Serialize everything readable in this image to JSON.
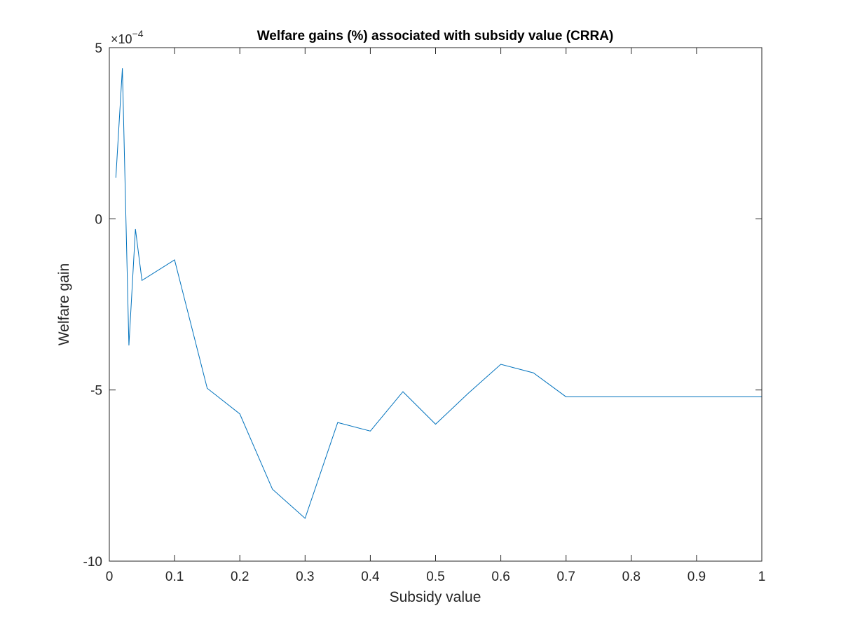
{
  "chart_data": {
    "type": "line",
    "title": "Welfare gains (%) associated with subsidy value (CRRA)",
    "xlabel": "Subsidy value",
    "ylabel": "Welfare gain",
    "xlim": [
      0,
      1
    ],
    "ylim": [
      -10,
      5
    ],
    "y_scale_multiplier": "×10",
    "y_scale_exponent": "−4",
    "xticks": [
      0,
      0.1,
      0.2,
      0.3,
      0.4,
      0.5,
      0.6,
      0.7,
      0.8,
      0.9,
      1
    ],
    "xtick_labels": [
      "0",
      "0.1",
      "0.2",
      "0.3",
      "0.4",
      "0.5",
      "0.6",
      "0.7",
      "0.8",
      "0.9",
      "1"
    ],
    "yticks": [
      -10,
      -5,
      0,
      5
    ],
    "ytick_labels": [
      "-10",
      "-5",
      "0",
      "5"
    ],
    "grid": false,
    "box": true,
    "series": [
      {
        "color": "#0072BD",
        "x": [
          0.01,
          0.02,
          0.03,
          0.04,
          0.05,
          0.1,
          0.15,
          0.2,
          0.25,
          0.3,
          0.35,
          0.4,
          0.45,
          0.5,
          0.55,
          0.6,
          0.65,
          0.7,
          0.75,
          0.8,
          0.85,
          0.9,
          0.95,
          1.0
        ],
        "y": [
          1.2,
          4.4,
          -3.7,
          -0.3,
          -1.8,
          -1.2,
          -4.95,
          -5.7,
          -7.9,
          -8.75,
          -5.95,
          -6.2,
          -5.05,
          -6.0,
          -5.1,
          -4.25,
          -4.5,
          -5.2,
          -5.2,
          -5.2,
          -5.2,
          -5.2,
          -5.2,
          -5.2
        ]
      }
    ]
  }
}
